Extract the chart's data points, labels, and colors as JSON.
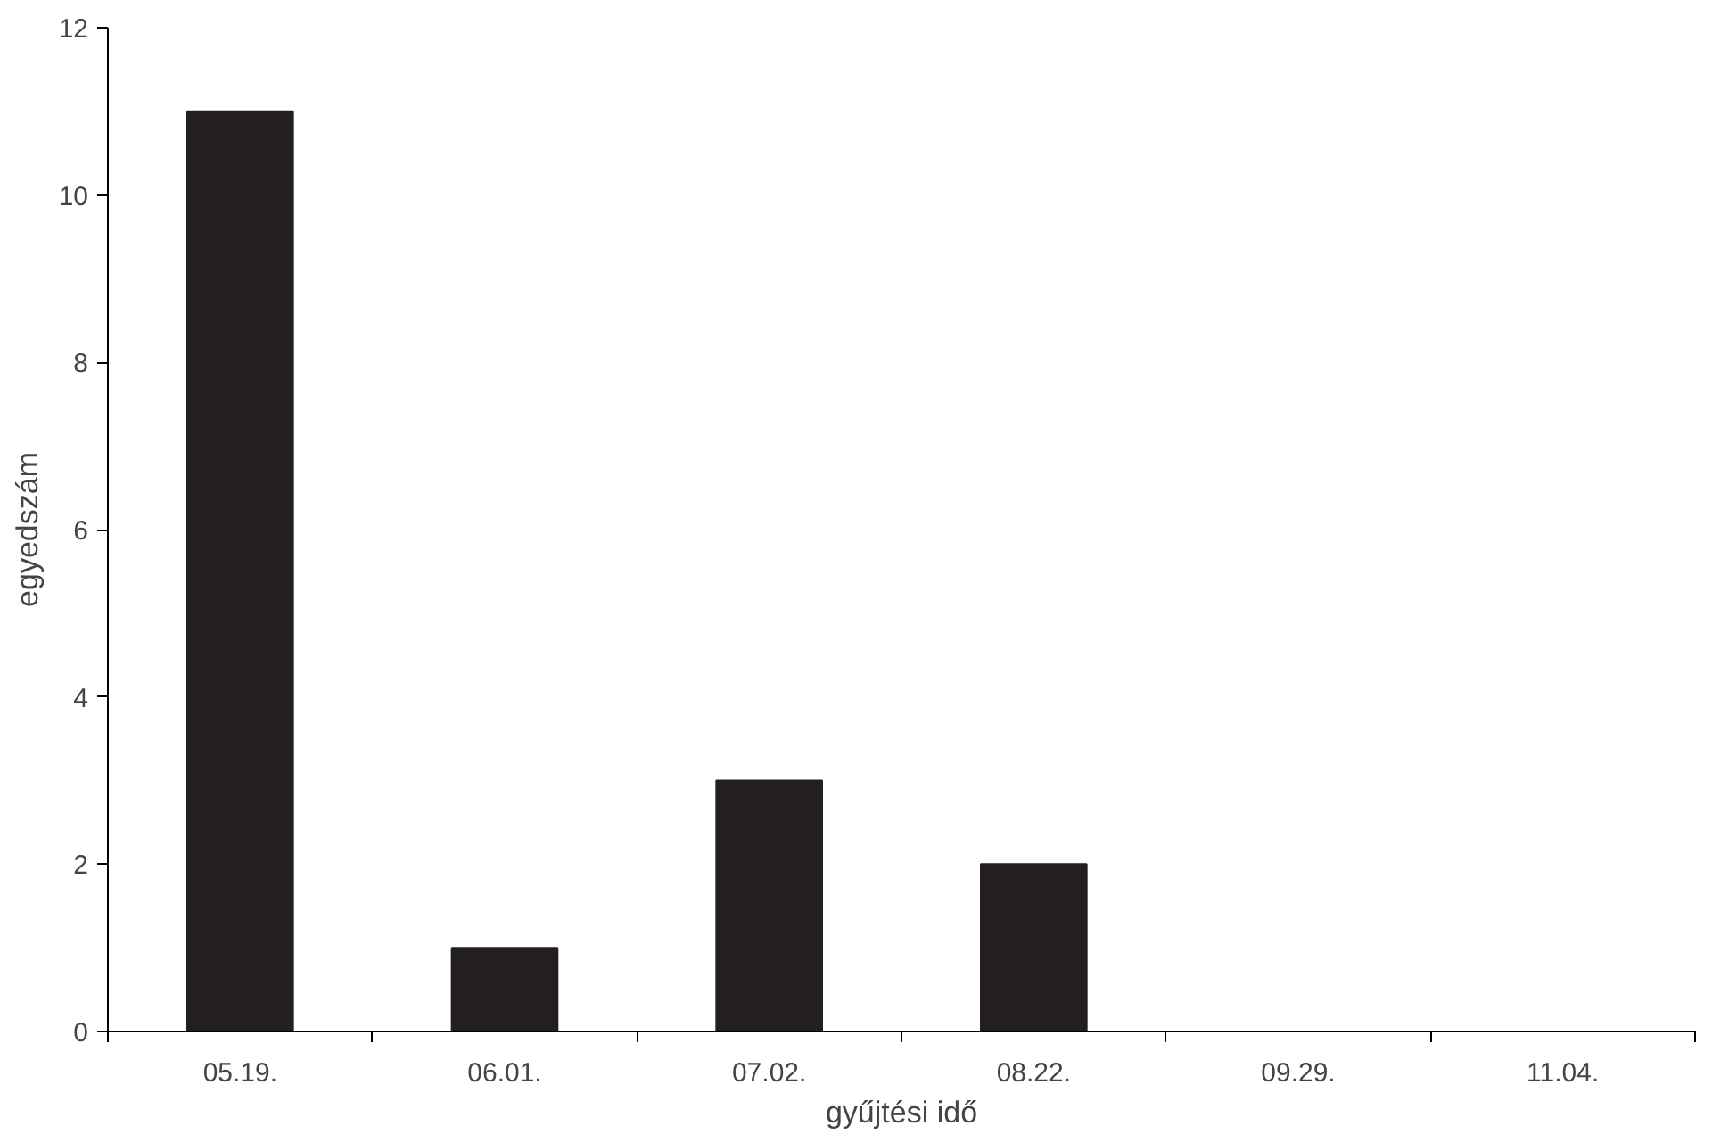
{
  "chart_data": {
    "type": "bar",
    "xlabel": "gyűjtési idő",
    "ylabel": "egyedszám",
    "categories": [
      "05.19.",
      "06.01.",
      "07.02.",
      "08.22.",
      "09.29.",
      "11.04."
    ],
    "values": [
      11,
      1,
      3,
      2,
      0,
      0
    ],
    "color": "#231f20",
    "ylim": [
      0,
      12
    ],
    "yticks": [
      0,
      2,
      4,
      6,
      8,
      10,
      12
    ],
    "grid": false
  }
}
